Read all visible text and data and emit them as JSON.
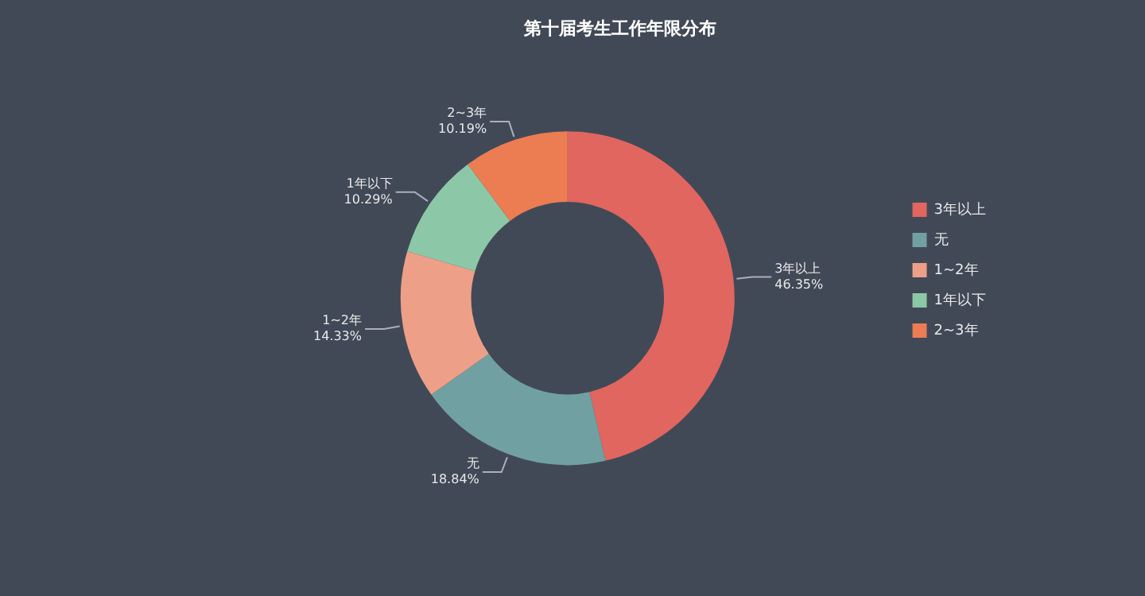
{
  "chart_data": {
    "type": "donut",
    "title": "第十届考生工作年限分布",
    "categories": [
      "3年以上",
      "无",
      "1~2年",
      "1年以下",
      "2~3年"
    ],
    "values": [
      46.35,
      18.84,
      14.33,
      10.29,
      10.19
    ],
    "value_labels": [
      "46.35%",
      "18.84%",
      "14.33%",
      "10.29%",
      "10.19%"
    ],
    "colors": [
      "#e0665f",
      "#71a0a2",
      "#ee9f87",
      "#8cc8a8",
      "#ec7c52"
    ],
    "legend": "right"
  }
}
